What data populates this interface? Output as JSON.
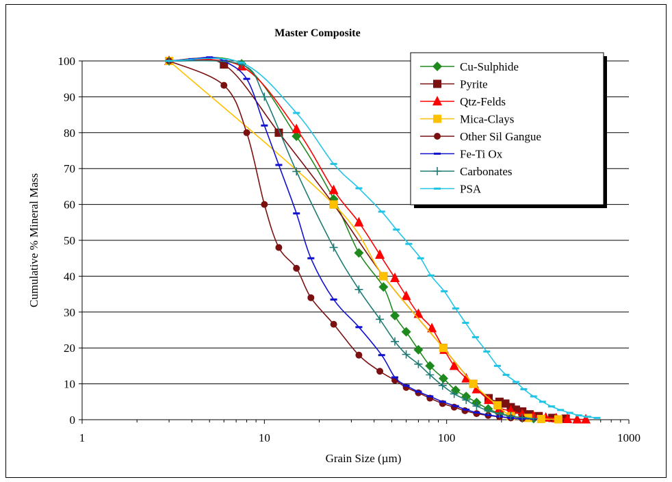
{
  "chart_data": {
    "type": "line",
    "title": "Master Composite",
    "xlabel": "Grain Size (µm)",
    "ylabel": "Cumulative % Mineral Mass",
    "xscale": "log",
    "xlim": [
      1,
      1000
    ],
    "ylim": [
      0,
      100
    ],
    "xticks": [
      1,
      10,
      100,
      1000
    ],
    "yticks": [
      0,
      10,
      20,
      30,
      40,
      50,
      60,
      70,
      80,
      90,
      100
    ],
    "grid": "horizontal",
    "legend_position": "top-right",
    "series": [
      {
        "name": "Cu-Sulphide",
        "color": "#1e8a1e",
        "marker": "diamond",
        "points": [
          [
            3,
            100
          ],
          [
            7.5,
            99.2
          ],
          [
            15,
            79
          ],
          [
            24,
            61.5
          ],
          [
            33,
            46.5
          ],
          [
            45,
            37
          ],
          [
            52,
            29
          ],
          [
            60,
            24.5
          ],
          [
            70,
            19.5
          ],
          [
            81,
            15
          ],
          [
            96,
            11.5
          ],
          [
            112,
            8.2
          ],
          [
            128,
            6.5
          ],
          [
            146,
            4.8
          ],
          [
            169,
            3.0
          ],
          [
            195,
            1.8
          ],
          [
            225,
            1.0
          ],
          [
            260,
            0.5
          ],
          [
            300,
            0.3
          ]
        ]
      },
      {
        "name": "Pyrite",
        "color": "#7a1010",
        "marker": "square",
        "points": [
          [
            3,
            100
          ],
          [
            6,
            99
          ],
          [
            12,
            80
          ],
          [
            24,
            60
          ],
          [
            45,
            40
          ],
          [
            96,
            20
          ],
          [
            140,
            10
          ],
          [
            170,
            6
          ],
          [
            195,
            5
          ],
          [
            210,
            4.5
          ],
          [
            225,
            3.5
          ],
          [
            240,
            2.8
          ],
          [
            260,
            2.3
          ],
          [
            285,
            1.5
          ],
          [
            320,
            1.0
          ],
          [
            380,
            0.5
          ],
          [
            450,
            0.3
          ]
        ]
      },
      {
        "name": "Qtz-Felds",
        "color": "#ff0000",
        "marker": "triangle",
        "points": [
          [
            3,
            100
          ],
          [
            7.5,
            98.5
          ],
          [
            15,
            81
          ],
          [
            24,
            64
          ],
          [
            33,
            55
          ],
          [
            43,
            46
          ],
          [
            52,
            39.5
          ],
          [
            60,
            34.5
          ],
          [
            70,
            29.5
          ],
          [
            83,
            25.5
          ],
          [
            97,
            19.5
          ],
          [
            110,
            15
          ],
          [
            128,
            11.5
          ],
          [
            146,
            8.5
          ],
          [
            170,
            5.5
          ],
          [
            195,
            3.2
          ],
          [
            225,
            2.5
          ],
          [
            260,
            1.5
          ],
          [
            300,
            1.0
          ],
          [
            350,
            0.6
          ],
          [
            400,
            0.4
          ],
          [
            460,
            0.2
          ],
          [
            520,
            0.1
          ],
          [
            580,
            0.1
          ]
        ]
      },
      {
        "name": "Mica-Clays",
        "color": "#ffc000",
        "marker": "square",
        "points": [
          [
            3,
            100
          ],
          [
            24,
            60
          ],
          [
            45,
            40
          ],
          [
            96,
            20
          ],
          [
            140,
            10
          ],
          [
            190,
            4
          ],
          [
            225,
            1
          ],
          [
            280,
            0.5
          ],
          [
            330,
            0.2
          ],
          [
            410,
            0.1
          ]
        ]
      },
      {
        "name": "Other Sil Gangue",
        "color": "#7a1010",
        "marker": "circle",
        "points": [
          [
            3,
            100
          ],
          [
            6,
            93.2
          ],
          [
            8,
            80
          ],
          [
            10,
            60
          ],
          [
            12,
            48
          ],
          [
            15,
            42.2
          ],
          [
            18,
            34
          ],
          [
            24,
            26.6
          ],
          [
            33,
            18
          ],
          [
            43,
            13.5
          ],
          [
            52,
            11
          ],
          [
            60,
            9
          ],
          [
            70,
            7.5
          ],
          [
            81,
            6
          ],
          [
            95,
            4.5
          ],
          [
            110,
            3.5
          ],
          [
            126,
            2.5
          ],
          [
            146,
            1.7
          ],
          [
            169,
            1.2
          ],
          [
            195,
            0.8
          ],
          [
            225,
            0.5
          ],
          [
            260,
            0.3
          ]
        ]
      },
      {
        "name": "Fe-Ti Ox",
        "color": "#1010d0",
        "marker": "dash",
        "points": [
          [
            3,
            100
          ],
          [
            4,
            100.5
          ],
          [
            5,
            101
          ],
          [
            6,
            100
          ],
          [
            8,
            95
          ],
          [
            10,
            82
          ],
          [
            12,
            71
          ],
          [
            15,
            57.5
          ],
          [
            18,
            45
          ],
          [
            24,
            33.5
          ],
          [
            33,
            25.8
          ],
          [
            44,
            18
          ],
          [
            52,
            11.8
          ],
          [
            60,
            9.5
          ],
          [
            70,
            7.8
          ],
          [
            81,
            6.5
          ],
          [
            95,
            5
          ],
          [
            112,
            3.8
          ],
          [
            128,
            2.8
          ],
          [
            146,
            2.0
          ],
          [
            169,
            1.3
          ],
          [
            195,
            0.9
          ],
          [
            225,
            0.5
          ],
          [
            260,
            0.3
          ],
          [
            300,
            0.2
          ]
        ]
      },
      {
        "name": "Carbonates",
        "color": "#1e7a74",
        "marker": "plus",
        "points": [
          [
            3,
            100
          ],
          [
            7.5,
            99
          ],
          [
            10,
            90
          ],
          [
            15,
            69.2
          ],
          [
            24,
            48
          ],
          [
            33,
            36.3
          ],
          [
            43,
            28
          ],
          [
            52,
            21.8
          ],
          [
            60,
            18.2
          ],
          [
            70,
            15.5
          ],
          [
            81,
            12.5
          ],
          [
            95,
            9.5
          ],
          [
            110,
            7.2
          ],
          [
            128,
            5.5
          ],
          [
            146,
            3.8
          ],
          [
            169,
            2.5
          ],
          [
            195,
            1.6
          ],
          [
            225,
            1.0
          ],
          [
            260,
            0.6
          ],
          [
            300,
            0.3
          ]
        ]
      },
      {
        "name": "PSA",
        "color": "#22c4e6",
        "marker": "dash",
        "points": [
          [
            3,
            100
          ],
          [
            7.5,
            99.5
          ],
          [
            15,
            85.5
          ],
          [
            24,
            71.3
          ],
          [
            33,
            64.5
          ],
          [
            44,
            58
          ],
          [
            53,
            53
          ],
          [
            62,
            49
          ],
          [
            72,
            45
          ],
          [
            82,
            40.2
          ],
          [
            97,
            35.8
          ],
          [
            112,
            31
          ],
          [
            127,
            27
          ],
          [
            144,
            23
          ],
          [
            166,
            19
          ],
          [
            190,
            15
          ],
          [
            212,
            12.5
          ],
          [
            240,
            10.5
          ],
          [
            265,
            8.5
          ],
          [
            300,
            6.5
          ],
          [
            336,
            5
          ],
          [
            376,
            3.7
          ],
          [
            422,
            2.7
          ],
          [
            474,
            1.9
          ],
          [
            531,
            1.2
          ],
          [
            596,
            0.8
          ],
          [
            669,
            0.5
          ]
        ]
      }
    ]
  }
}
